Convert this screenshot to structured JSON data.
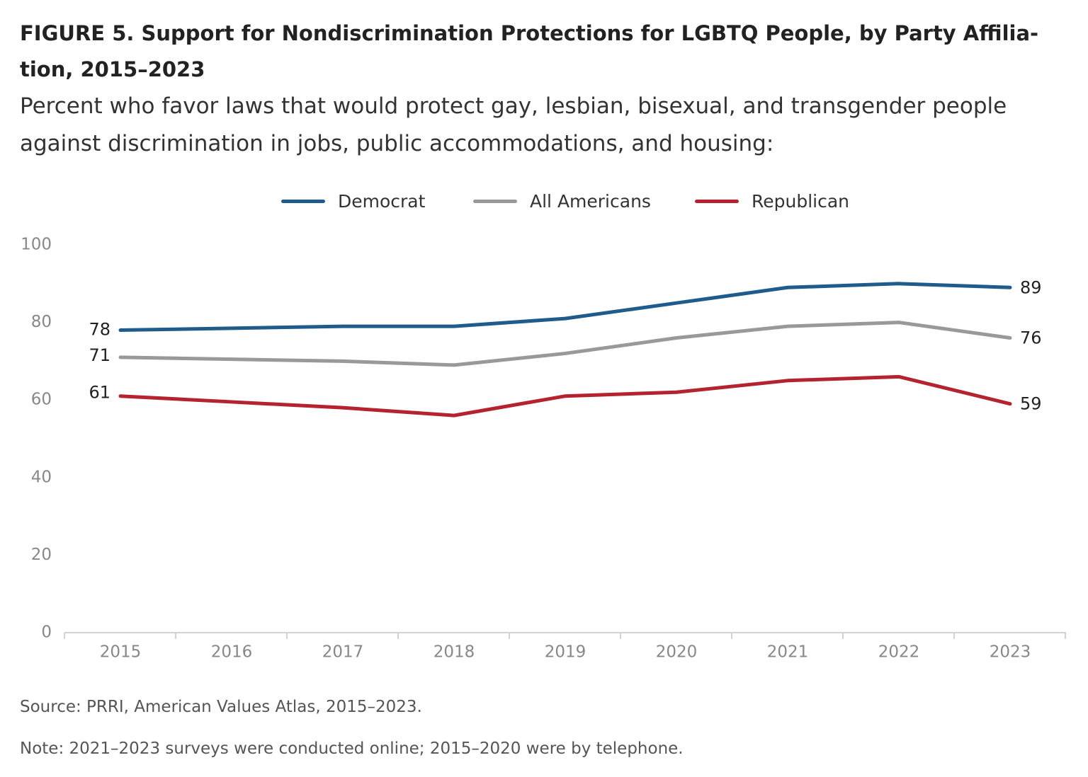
{
  "title": "FIGURE 5. Support for Nondiscrimination Protections for LGBTQ People, by Party Affilia-tion, 2015–2023",
  "title_lines": [
    "FIGURE 5. Support for Nondiscrimination Protections for LGBTQ People, by Party Affilia-",
    "tion, 2015–2023"
  ],
  "subtitle": "Percent who favor laws that would protect gay, lesbian, bisexual, and transgender people against discrimination in jobs, public accommodations, and housing:",
  "legend": [
    {
      "name": "Democrat",
      "color": "#1f5c8b"
    },
    {
      "name": "All Americans",
      "color": "#999999"
    },
    {
      "name": "Republican",
      "color": "#b5242e"
    }
  ],
  "chart_data": {
    "type": "line",
    "title": "FIGURE 5. Support for Nondiscrimination Protections for LGBTQ People, by Party Affiliation, 2015–2023",
    "x": [
      "2015",
      "2016",
      "2017",
      "2018",
      "2019",
      "2020",
      "2021",
      "2022",
      "2023"
    ],
    "y_ticks": [
      0,
      20,
      40,
      60,
      80,
      100
    ],
    "ylim": [
      0,
      100
    ],
    "grid": false,
    "legend_position": "top-center",
    "series": [
      {
        "name": "Democrat",
        "color": "#1f5c8b",
        "values": [
          78,
          78.5,
          79,
          79,
          81,
          85,
          89,
          90,
          89
        ]
      },
      {
        "name": "All Americans",
        "color": "#999999",
        "values": [
          71,
          70.5,
          70,
          69,
          72,
          76,
          79,
          80,
          76
        ]
      },
      {
        "name": "Republican",
        "color": "#b5242e",
        "values": [
          61,
          59.5,
          58,
          56,
          61,
          62,
          65,
          66,
          59
        ]
      }
    ],
    "data_labels": {
      "start": [
        "78",
        "71",
        "61"
      ],
      "end": [
        "89",
        "76",
        "59"
      ]
    }
  },
  "source": "Source: PRRI, American Values Atlas, 2015–2023.",
  "note": "Note: 2021–2023 surveys were conducted online; 2015–2020 were by telephone."
}
